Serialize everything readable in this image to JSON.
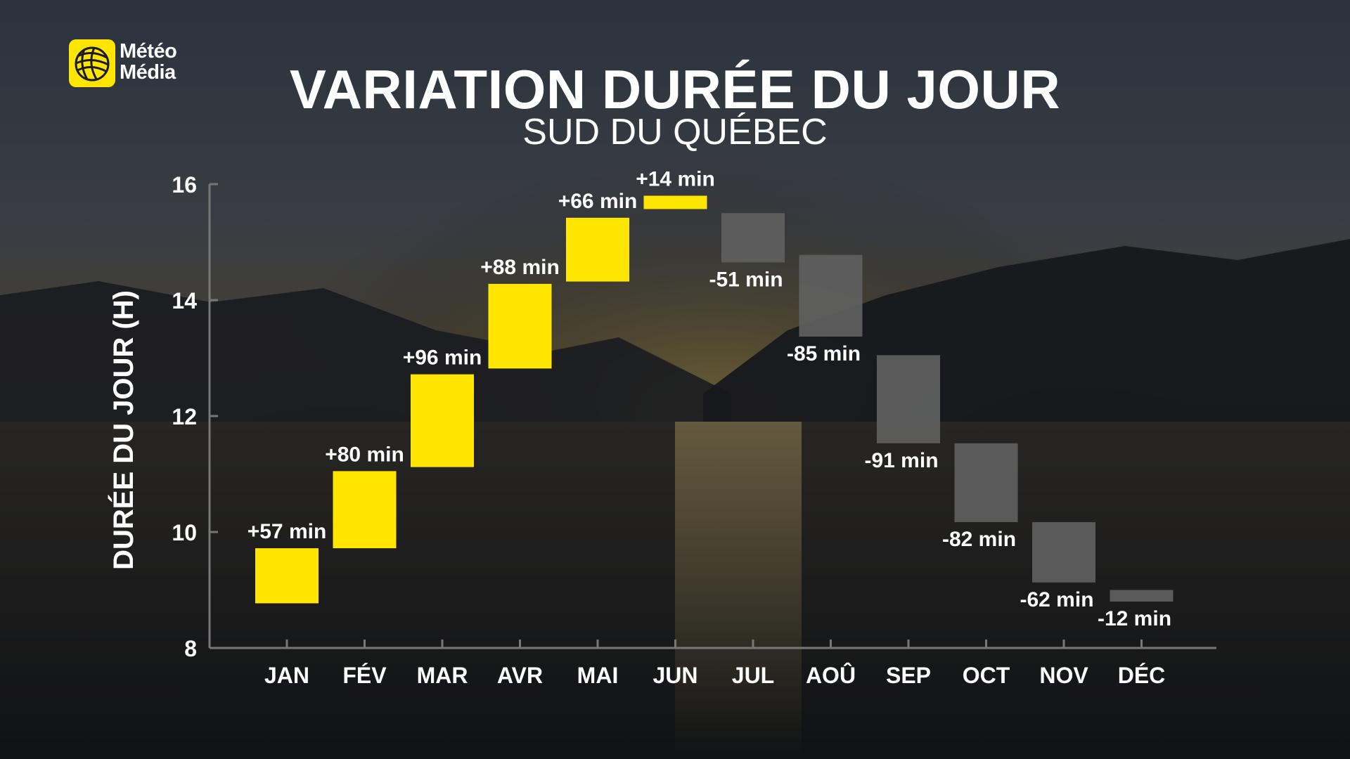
{
  "logo": {
    "line1": "Météo",
    "line2": "Média",
    "accent": "#FFE600"
  },
  "header": {
    "title": "VARIATION DURÉE DU JOUR",
    "subtitle": "SUD DU QUÉBEC"
  },
  "colors": {
    "increase": "#FFE600",
    "decrease": "#5f5f5f",
    "axis": "#777777"
  },
  "chart_data": {
    "type": "bar",
    "subtype": "floating-waterfall",
    "title": "VARIATION DURÉE DU JOUR",
    "subtitle": "SUD DU QUÉBEC",
    "xlabel": "",
    "ylabel": "DURÉE DU JOUR (H)",
    "ylim": [
      8,
      16
    ],
    "yticks": [
      8,
      10,
      12,
      14,
      16
    ],
    "grid": false,
    "legend": "none",
    "categories": [
      "JAN",
      "FÉV",
      "MAR",
      "AVR",
      "MAI",
      "JUN",
      "JUL",
      "AOÛ",
      "SEP",
      "OCT",
      "NOV",
      "DÉC"
    ],
    "change_labels": [
      "+57 min",
      "+80 min",
      "+96 min",
      "+88 min",
      "+66 min",
      "+14 min",
      "-51 min",
      "-85 min",
      "-91 min",
      "-82 min",
      "-62 min",
      "-12 min"
    ],
    "change_minutes": [
      57,
      80,
      96,
      88,
      66,
      14,
      -51,
      -85,
      -91,
      -82,
      -62,
      -12
    ],
    "bars": [
      {
        "start": 8.77,
        "end": 9.72
      },
      {
        "start": 9.72,
        "end": 11.05
      },
      {
        "start": 11.12,
        "end": 12.72
      },
      {
        "start": 12.82,
        "end": 14.28
      },
      {
        "start": 14.32,
        "end": 15.42
      },
      {
        "start": 15.57,
        "end": 15.8
      },
      {
        "start": 15.5,
        "end": 14.65
      },
      {
        "start": 14.78,
        "end": 13.37
      },
      {
        "start": 13.05,
        "end": 11.53
      },
      {
        "start": 11.53,
        "end": 10.17
      },
      {
        "start": 10.17,
        "end": 9.13
      },
      {
        "start": 9.0,
        "end": 8.8
      }
    ]
  }
}
